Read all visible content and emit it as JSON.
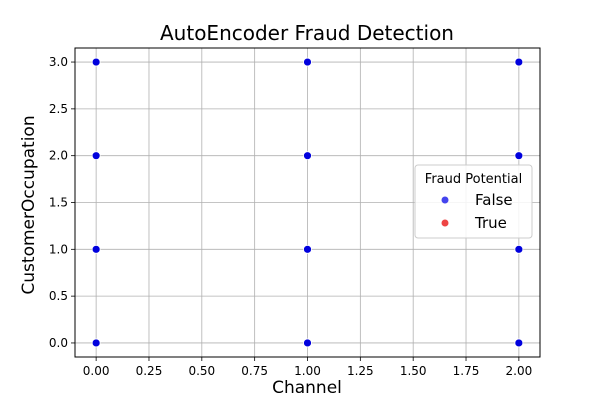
{
  "chart_data": {
    "type": "scatter",
    "title": "AutoEncoder Fraud Detection",
    "xlabel": "Channel",
    "ylabel": "CustomerOccupation",
    "xlim": [
      -0.1,
      2.1
    ],
    "ylim": [
      -0.15,
      3.15
    ],
    "xticks": [
      0.0,
      0.25,
      0.5,
      0.75,
      1.0,
      1.25,
      1.5,
      1.75,
      2.0
    ],
    "xtick_labels": [
      "0.00",
      "0.25",
      "0.50",
      "0.75",
      "1.00",
      "1.25",
      "1.50",
      "1.75",
      "2.00"
    ],
    "yticks": [
      0.0,
      0.5,
      1.0,
      1.5,
      2.0,
      2.5,
      3.0
    ],
    "ytick_labels": [
      "0.0",
      "0.5",
      "1.0",
      "1.5",
      "2.0",
      "2.5",
      "3.0"
    ],
    "grid": true,
    "legend": {
      "title": "Fraud Potential",
      "placement": "center-right",
      "entries": [
        {
          "label": "False",
          "color": "#4444ee"
        },
        {
          "label": "True",
          "color": "#ee4444"
        }
      ]
    },
    "series": [
      {
        "name": "False",
        "color": "#0000dd",
        "points": [
          {
            "x": 0,
            "y": 0
          },
          {
            "x": 0,
            "y": 1
          },
          {
            "x": 0,
            "y": 2
          },
          {
            "x": 0,
            "y": 3
          },
          {
            "x": 1,
            "y": 0
          },
          {
            "x": 1,
            "y": 1
          },
          {
            "x": 1,
            "y": 2
          },
          {
            "x": 1,
            "y": 3
          },
          {
            "x": 2,
            "y": 0
          },
          {
            "x": 2,
            "y": 1
          },
          {
            "x": 2,
            "y": 2
          },
          {
            "x": 2,
            "y": 3
          }
        ]
      },
      {
        "name": "True",
        "color": "#ee4444",
        "points": []
      }
    ]
  }
}
